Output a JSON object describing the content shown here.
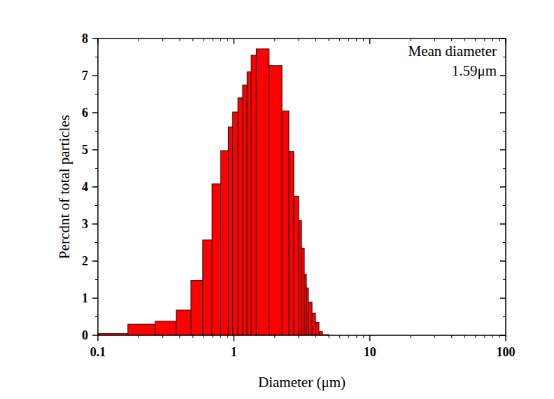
{
  "chart_data": {
    "type": "histogram",
    "xlabel": "Diameter (μm)",
    "ylabel": "Percdnt of total particles",
    "annotations": [
      "Mean diameter",
      "1.59μm"
    ],
    "bins": [
      0.1,
      0.166,
      0.264,
      0.377,
      0.483,
      0.59,
      0.69,
      0.8,
      0.91,
      0.98,
      1.07,
      1.16,
      1.25,
      1.34,
      1.46,
      1.82,
      2.26,
      2.54,
      2.76,
      3.0,
      3.15,
      3.3,
      3.42,
      3.54,
      3.76,
      3.99,
      4.23,
      4.49,
      4.99
    ],
    "values": [
      0.05,
      0.3,
      0.38,
      0.68,
      1.48,
      2.57,
      4.08,
      4.98,
      5.62,
      6.02,
      6.4,
      6.75,
      7.1,
      7.55,
      7.72,
      7.27,
      6.05,
      4.95,
      3.75,
      3.1,
      2.35,
      1.65,
      1.28,
      0.9,
      0.6,
      0.35,
      0.1,
      0.02
    ],
    "color": "#ff0000",
    "log": "x",
    "xlim": [
      0.1,
      100
    ],
    "xticks": [
      0.1,
      1,
      10,
      100
    ],
    "ylim": [
      0,
      8
    ],
    "yticks": [
      0,
      1,
      2,
      3,
      4,
      5,
      6,
      7,
      8
    ],
    "grid": false
  }
}
